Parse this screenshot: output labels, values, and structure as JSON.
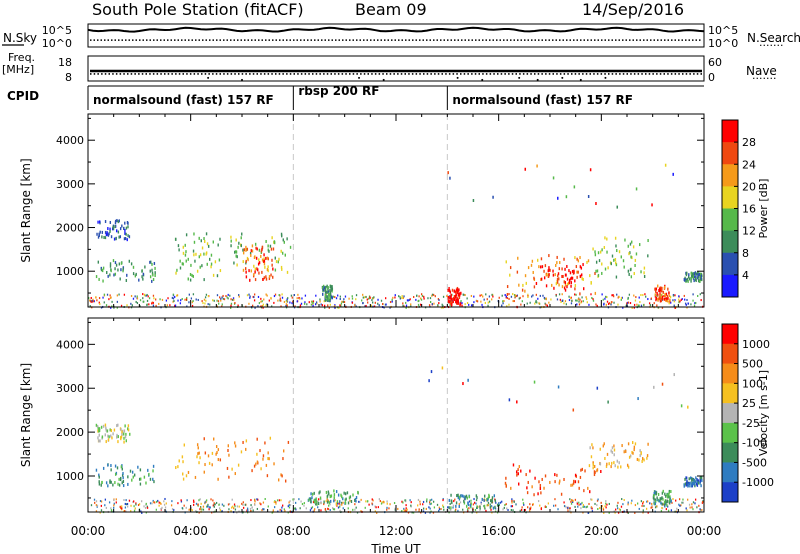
{
  "header": {
    "station": "South Pole Station (fitACF)",
    "beam": "Beam 09",
    "date": "14/Sep/2016"
  },
  "side_labels": {
    "nsky": "N.Sky",
    "freq": "Freq.",
    "freq_unit": "[MHz]",
    "cpid": "CPID",
    "nsearch": "N.Search",
    "nave": "Nave",
    "dots": "......."
  },
  "chart_data": [
    {
      "type": "line",
      "panel": "noise",
      "ylabel": "N.Sky",
      "y2label": "N.Search",
      "ytick_labels": [
        "10^5",
        "10^0"
      ],
      "y2tick_labels": [
        "10^5",
        "10^0"
      ],
      "series": [
        {
          "name": "N.Sky",
          "style": "solid",
          "level": 0.75
        },
        {
          "name": "N.Search",
          "style": "dotted",
          "level": 0.3
        }
      ]
    },
    {
      "type": "line",
      "panel": "frequency",
      "ylabel": "Freq. [MHz]",
      "ylim": [
        8,
        18
      ],
      "ytick_labels": [
        "18",
        "8"
      ],
      "y2label": "Nave",
      "y2lim": [
        0,
        60
      ],
      "y2tick_labels": [
        "60",
        "0"
      ],
      "series": [
        {
          "name": "Freq.",
          "style": "solid",
          "value": 12
        },
        {
          "name": "Nave",
          "style": "dotted",
          "value": 17
        }
      ]
    },
    {
      "type": "table",
      "panel": "cpid",
      "label": "CPID",
      "segments": [
        {
          "start": 0,
          "end": 8,
          "label": "normalsound (fast) 157 RF"
        },
        {
          "start": 8,
          "end": 14,
          "label": "rbsp 200 RF"
        },
        {
          "start": 14,
          "end": 24,
          "label": "normalsound (fast) 157 RF"
        }
      ]
    },
    {
      "type": "heatmap",
      "panel": "power",
      "ylabel": "Slant Range [km]",
      "xlim": [
        0,
        24
      ],
      "ylim": [
        180,
        4600
      ],
      "yticks": [
        1000,
        2000,
        3000,
        4000
      ],
      "colorbar": {
        "label": "Power [dB]",
        "ticks": [
          "4",
          "8",
          "12",
          "16",
          "20",
          "24",
          "28"
        ],
        "colors": [
          "#1a1aff",
          "#2a50b0",
          "#3c8c5a",
          "#56b94a",
          "#e8d420",
          "#f59a1a",
          "#f04810",
          "#ff0000"
        ]
      },
      "regions": [
        {
          "t": [
            0.3,
            1.6
          ],
          "r": [
            1750,
            2200
          ],
          "level": 1
        },
        {
          "t": [
            0.3,
            2.6
          ],
          "r": [
            800,
            1300
          ],
          "level": 2
        },
        {
          "t": [
            3.3,
            5.2
          ],
          "r": [
            800,
            1900
          ],
          "level": 3
        },
        {
          "t": [
            5.5,
            7.9
          ],
          "r": [
            1000,
            1900
          ],
          "level": 3
        },
        {
          "t": [
            6.0,
            7.2
          ],
          "r": [
            800,
            1650
          ],
          "level": 6
        },
        {
          "t": [
            9.1,
            9.5
          ],
          "r": [
            350,
            700
          ],
          "level": 2
        },
        {
          "t": [
            14.0,
            14.5
          ],
          "r": [
            250,
            650
          ],
          "level": 7
        },
        {
          "t": [
            16.2,
            19.8
          ],
          "r": [
            500,
            1400
          ],
          "level": 5
        },
        {
          "t": [
            17.3,
            19.3
          ],
          "r": [
            600,
            1200
          ],
          "level": 7
        },
        {
          "t": [
            19.6,
            21.8
          ],
          "r": [
            900,
            1800
          ],
          "level": 3
        },
        {
          "t": [
            22.0,
            22.7
          ],
          "r": [
            350,
            700
          ],
          "level": 6
        },
        {
          "t": [
            23.2,
            23.9
          ],
          "r": [
            800,
            1000
          ],
          "level": 2
        }
      ]
    },
    {
      "type": "heatmap",
      "panel": "velocity",
      "xlabel": "Time UT",
      "ylabel": "Slant Range [km]",
      "xlim": [
        0,
        24
      ],
      "ylim": [
        180,
        4600
      ],
      "xtick_labels": [
        "00:00",
        "04:00",
        "08:00",
        "12:00",
        "16:00",
        "20:00",
        "00:00"
      ],
      "yticks": [
        1000,
        2000,
        3000,
        4000
      ],
      "colorbar": {
        "label": "Velocity [m s-1]",
        "ticks": [
          "1000",
          "500",
          "100",
          "25",
          "-25",
          "-100",
          "-500",
          "-1000"
        ],
        "colors": [
          "#1c40c8",
          "#2f7cc0",
          "#3c8c5a",
          "#5bc24a",
          "#b4b4b4",
          "#f5c020",
          "#f58c1a",
          "#f05010",
          "#ff0000"
        ]
      },
      "regions": [
        {
          "t": [
            0.3,
            1.6
          ],
          "r": [
            1800,
            2200
          ],
          "level": 4
        },
        {
          "t": [
            0.3,
            2.6
          ],
          "r": [
            800,
            1300
          ],
          "level": 2
        },
        {
          "t": [
            3.3,
            7.9
          ],
          "r": [
            900,
            1900
          ],
          "level": 6
        },
        {
          "t": [
            8.5,
            10.5
          ],
          "r": [
            400,
            700
          ],
          "level": 2
        },
        {
          "t": [
            14.0,
            16.0
          ],
          "r": [
            300,
            600
          ],
          "level": 2
        },
        {
          "t": [
            16.2,
            20.0
          ],
          "r": [
            600,
            1300
          ],
          "level": 7
        },
        {
          "t": [
            19.5,
            21.8
          ],
          "r": [
            1200,
            1800
          ],
          "level": 5
        },
        {
          "t": [
            22.0,
            22.7
          ],
          "r": [
            350,
            700
          ],
          "level": 2
        },
        {
          "t": [
            23.2,
            23.9
          ],
          "r": [
            800,
            1000
          ],
          "level": 1
        }
      ]
    }
  ]
}
